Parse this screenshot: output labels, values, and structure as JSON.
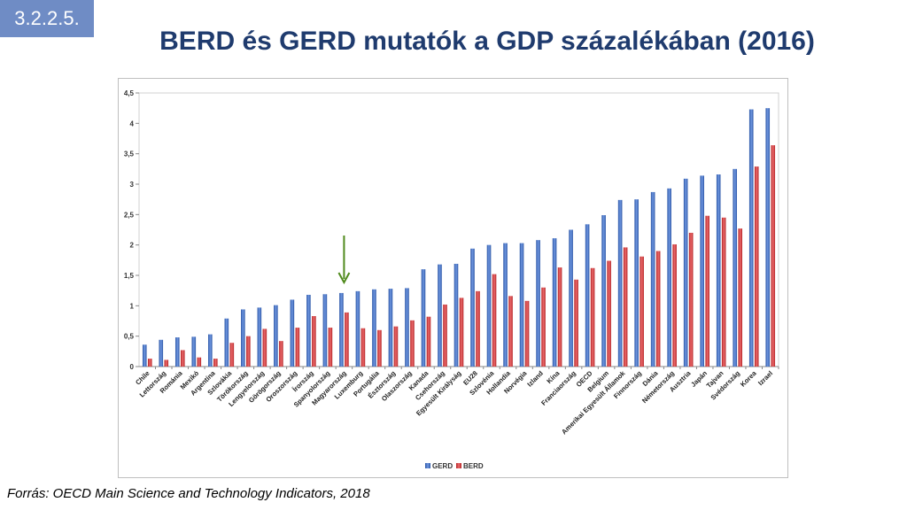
{
  "badge": "3.2.2.5.",
  "title": "BERD és GERD mutatók a GDP százalékában (2016)",
  "source": "Forrás: OECD Main Science and Technology Indicators, 2018",
  "colors": {
    "gerd": "#4472c4",
    "berd": "#d9383a",
    "arrow": "#4f8a1c"
  },
  "chart_data": {
    "type": "bar",
    "title": "",
    "xlabel": "",
    "ylabel": "",
    "ylim": [
      0,
      4.5
    ],
    "yticks": [
      "0",
      "0,5",
      "1",
      "1,5",
      "2",
      "2,5",
      "3",
      "3,5",
      "4",
      "4,5"
    ],
    "grid": false,
    "legend_position": "bottom",
    "highlight_arrow_category": "Magyarország",
    "categories": [
      "Chile",
      "Lettország",
      "Románia",
      "Mexikó",
      "Argentína",
      "Szlovákia",
      "Törökország",
      "Lengyelország",
      "Görögország",
      "Oroszország",
      "Írország",
      "Spanyolország",
      "Magyarország",
      "Luxemburg",
      "Portugália",
      "Észtország",
      "Olaszország",
      "Kanada",
      "Csehország",
      "Egyesült Királyság",
      "EU28",
      "Szlovénia",
      "Hollandia",
      "Norvégia",
      "Izland",
      "Kína",
      "Franciaország",
      "OECD",
      "Belgium",
      "Amerikai Egyesült Államok",
      "Finnország",
      "Dánia",
      "Németország",
      "Ausztria",
      "Japán",
      "Tajvan",
      "Svédország",
      "Korea",
      "Izrael"
    ],
    "series": [
      {
        "name": "GERD",
        "values": [
          0.36,
          0.44,
          0.48,
          0.49,
          0.53,
          0.79,
          0.94,
          0.97,
          1.01,
          1.1,
          1.18,
          1.19,
          1.21,
          1.24,
          1.27,
          1.28,
          1.29,
          1.6,
          1.68,
          1.69,
          1.94,
          2.0,
          2.03,
          2.03,
          2.08,
          2.11,
          2.25,
          2.34,
          2.49,
          2.74,
          2.75,
          2.87,
          2.93,
          3.09,
          3.14,
          3.16,
          3.25,
          4.23,
          4.25
        ]
      },
      {
        "name": "BERD",
        "values": [
          0.13,
          0.11,
          0.27,
          0.15,
          0.13,
          0.39,
          0.5,
          0.62,
          0.42,
          0.64,
          0.83,
          0.64,
          0.89,
          0.63,
          0.6,
          0.66,
          0.76,
          0.82,
          1.02,
          1.13,
          1.24,
          1.52,
          1.16,
          1.08,
          1.3,
          1.63,
          1.43,
          1.62,
          1.74,
          1.96,
          1.81,
          1.9,
          2.01,
          2.2,
          2.48,
          2.45,
          2.27,
          3.29,
          3.64
        ]
      }
    ]
  }
}
